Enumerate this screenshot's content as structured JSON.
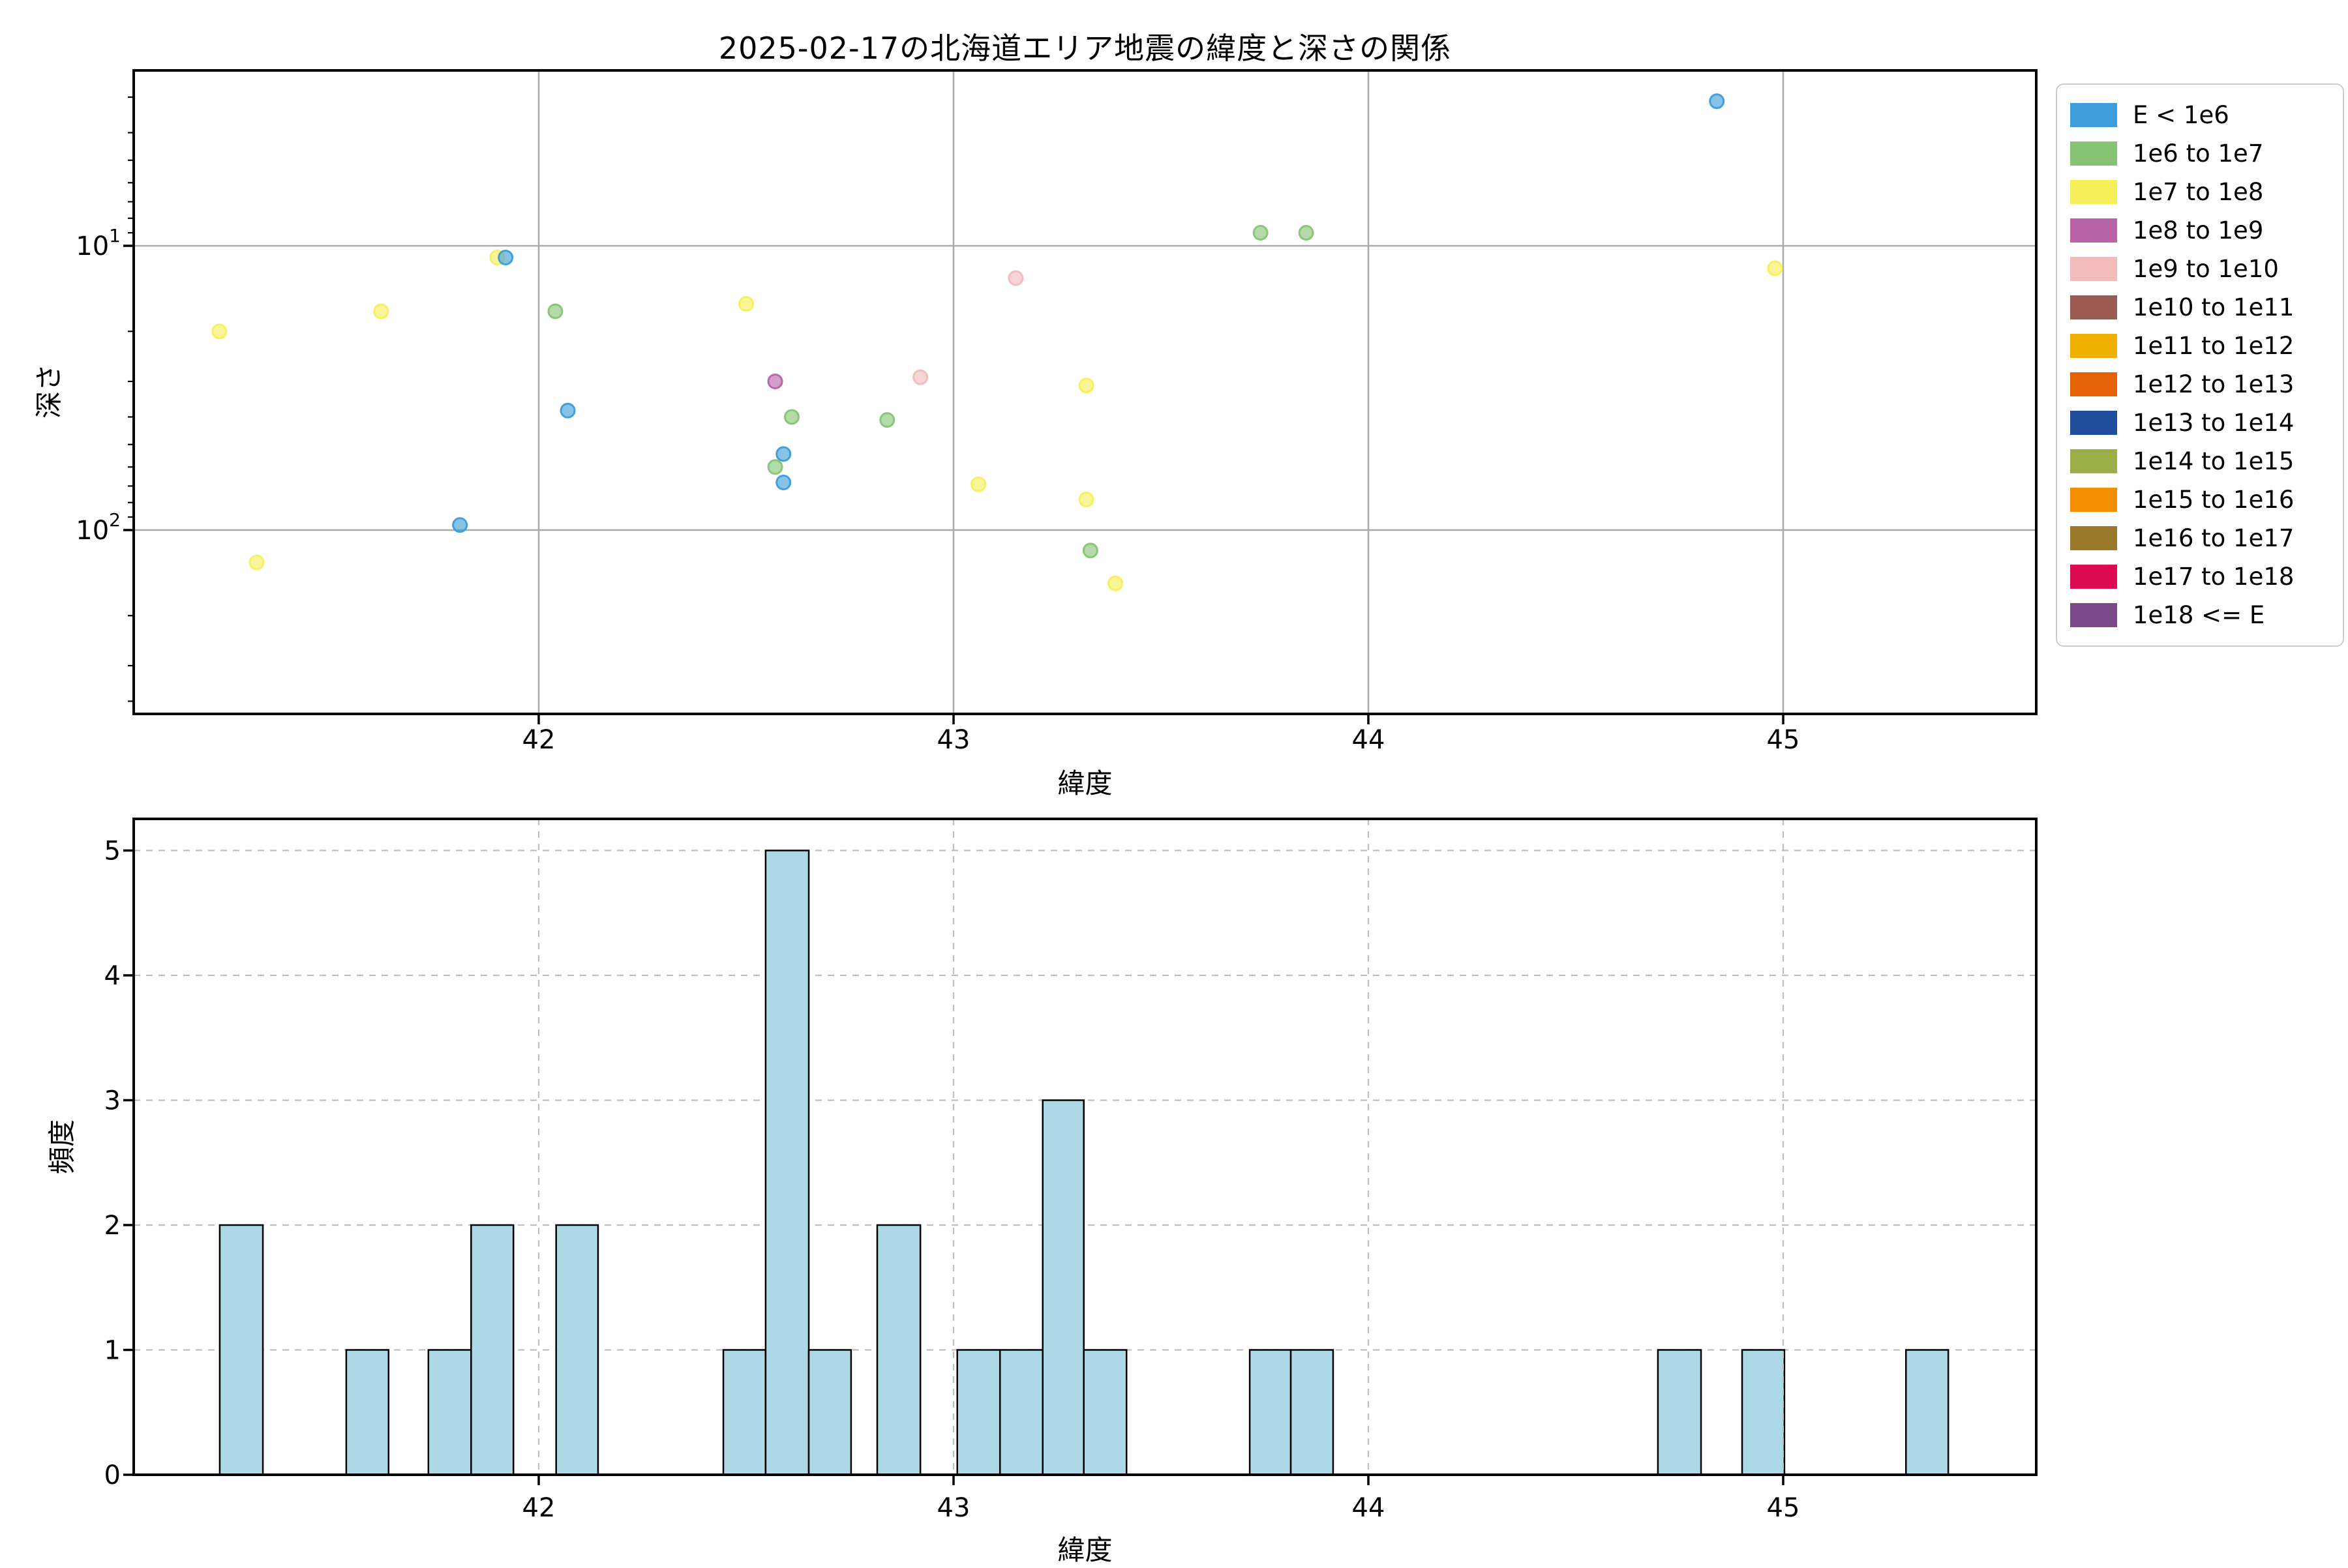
{
  "title": "2025-02-17の北海道エリア地震の緯度と深さの関係",
  "scatter_plot": {
    "xlabel": "緯度",
    "ylabel": "深さ",
    "x_ticks": [
      42,
      43,
      44,
      45
    ],
    "y_major_ticks": [
      {
        "base": "10",
        "exp": "1",
        "value": 10
      },
      {
        "base": "10",
        "exp": "2",
        "value": 100
      }
    ]
  },
  "histogram_plot": {
    "xlabel": "緯度",
    "ylabel": "頻度",
    "x_ticks": [
      42,
      43,
      44,
      45
    ],
    "y_ticks": [
      0,
      1,
      2,
      3,
      4,
      5
    ]
  },
  "legend": {
    "entries": [
      {
        "label": "E < 1e6",
        "color": "#3D9CD9"
      },
      {
        "label": "1e6 to 1e7",
        "color": "#86C474"
      },
      {
        "label": "1e7 to 1e8",
        "color": "#F5F05A"
      },
      {
        "label": "1e8 to 1e9",
        "color": "#BA62A8"
      },
      {
        "label": "1e9 to 1e10",
        "color": "#F2BCBC"
      },
      {
        "label": "1e10 to 1e11",
        "color": "#9C5B52"
      },
      {
        "label": "1e11 to 1e12",
        "color": "#F0B000"
      },
      {
        "label": "1e12 to 1e13",
        "color": "#E56205"
      },
      {
        "label": "1e13 to 1e14",
        "color": "#1F4E9C"
      },
      {
        "label": "1e14 to 1e15",
        "color": "#9CAE48"
      },
      {
        "label": "1e15 to 1e16",
        "color": "#F28E00"
      },
      {
        "label": "1e16 to 1e17",
        "color": "#9A7A2A"
      },
      {
        "label": "1e17 to 1e18",
        "color": "#DC0A50"
      },
      {
        "label": "1e18 <= E",
        "color": "#7C4A8A"
      }
    ]
  },
  "chart_data": [
    {
      "type": "scatter",
      "title": "2025-02-17の北海道エリア地震の緯度と深さの関係",
      "xlabel": "緯度",
      "ylabel": "深さ",
      "x_range": [
        41.02,
        45.61
      ],
      "y_scale": "log",
      "y_inverted": true,
      "y_range_depth": [
        2.4,
        432
      ],
      "grid": "solid",
      "points": [
        {
          "lat": 41.23,
          "depth": 20,
          "energy": "1e7 to 1e8"
        },
        {
          "lat": 41.32,
          "depth": 130,
          "energy": "1e7 to 1e8"
        },
        {
          "lat": 41.62,
          "depth": 17,
          "energy": "1e7 to 1e8"
        },
        {
          "lat": 41.81,
          "depth": 96,
          "energy": "E < 1e6"
        },
        {
          "lat": 41.9,
          "depth": 11,
          "energy": "1e7 to 1e8"
        },
        {
          "lat": 41.92,
          "depth": 11,
          "energy": "E < 1e6"
        },
        {
          "lat": 42.04,
          "depth": 17,
          "energy": "1e6 to 1e7"
        },
        {
          "lat": 42.07,
          "depth": 38,
          "energy": "E < 1e6"
        },
        {
          "lat": 42.5,
          "depth": 16,
          "energy": "1e7 to 1e8"
        },
        {
          "lat": 42.57,
          "depth": 30,
          "energy": "1e8 to 1e9"
        },
        {
          "lat": 42.61,
          "depth": 40,
          "energy": "1e6 to 1e7"
        },
        {
          "lat": 42.59,
          "depth": 54,
          "energy": "E < 1e6"
        },
        {
          "lat": 42.57,
          "depth": 60,
          "energy": "1e6 to 1e7"
        },
        {
          "lat": 42.59,
          "depth": 68,
          "energy": "E < 1e6"
        },
        {
          "lat": 42.84,
          "depth": 41,
          "energy": "1e6 to 1e7"
        },
        {
          "lat": 42.92,
          "depth": 29,
          "energy": "1e9 to 1e10"
        },
        {
          "lat": 43.15,
          "depth": 13,
          "energy": "1e9 to 1e10"
        },
        {
          "lat": 43.06,
          "depth": 69,
          "energy": "1e7 to 1e8"
        },
        {
          "lat": 43.32,
          "depth": 31,
          "energy": "1e7 to 1e8"
        },
        {
          "lat": 43.32,
          "depth": 78,
          "energy": "1e7 to 1e8"
        },
        {
          "lat": 43.33,
          "depth": 118,
          "energy": "1e6 to 1e7"
        },
        {
          "lat": 43.39,
          "depth": 154,
          "energy": "1e7 to 1e8"
        },
        {
          "lat": 43.74,
          "depth": 9,
          "energy": "1e6 to 1e7"
        },
        {
          "lat": 43.85,
          "depth": 9,
          "energy": "1e6 to 1e7"
        },
        {
          "lat": 44.84,
          "depth": 3.1,
          "energy": "E < 1e6"
        },
        {
          "lat": 44.98,
          "depth": 12,
          "energy": "1e7 to 1e8"
        }
      ]
    },
    {
      "type": "bar",
      "xlabel": "緯度",
      "ylabel": "頻度",
      "x_range": [
        41.02,
        45.61
      ],
      "ylim": [
        0,
        5.25
      ],
      "grid": "dashed",
      "bar_color": "#ADD8E6",
      "bar_edge_color": "#000000",
      "bins": [
        {
          "from": 41.231,
          "to": 41.335,
          "count": 2
        },
        {
          "from": 41.536,
          "to": 41.638,
          "count": 1
        },
        {
          "from": 41.734,
          "to": 41.837,
          "count": 1
        },
        {
          "from": 41.837,
          "to": 41.939,
          "count": 2
        },
        {
          "from": 42.042,
          "to": 42.143,
          "count": 2
        },
        {
          "from": 42.445,
          "to": 42.547,
          "count": 1
        },
        {
          "from": 42.547,
          "to": 42.651,
          "count": 5
        },
        {
          "from": 42.651,
          "to": 42.753,
          "count": 1
        },
        {
          "from": 42.816,
          "to": 42.92,
          "count": 2
        },
        {
          "from": 43.009,
          "to": 43.112,
          "count": 1
        },
        {
          "from": 43.112,
          "to": 43.215,
          "count": 1
        },
        {
          "from": 43.215,
          "to": 43.314,
          "count": 3
        },
        {
          "from": 43.314,
          "to": 43.417,
          "count": 1
        },
        {
          "from": 43.714,
          "to": 43.813,
          "count": 1
        },
        {
          "from": 43.813,
          "to": 43.915,
          "count": 1
        },
        {
          "from": 44.698,
          "to": 44.802,
          "count": 1
        },
        {
          "from": 44.901,
          "to": 45.003,
          "count": 1
        },
        {
          "from": 45.296,
          "to": 45.398,
          "count": 1
        }
      ]
    }
  ]
}
